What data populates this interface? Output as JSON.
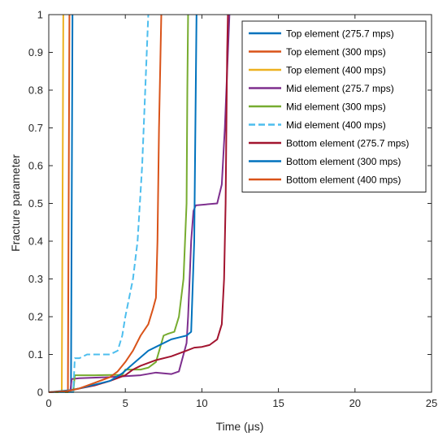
{
  "chart_data": {
    "type": "line",
    "title": "",
    "xlabel": "Time (μs)",
    "ylabel": "Fracture parameter",
    "xlim": [
      0,
      25
    ],
    "ylim": [
      0,
      1
    ],
    "xticks": [
      "0",
      "5",
      "10",
      "15",
      "20",
      "25"
    ],
    "yticks": [
      "0",
      "0.1",
      "0.2",
      "0.3",
      "0.4",
      "0.5",
      "0.6",
      "0.7",
      "0.8",
      "0.9",
      "1"
    ],
    "grid": false,
    "legend_position": "top-right",
    "series": [
      {
        "name": "Top element (275.7 mps)",
        "color": "#0072BD",
        "dash": "solid",
        "x": [
          0,
          1.45,
          1.5,
          1.55
        ],
        "y": [
          0,
          0,
          0.5,
          1
        ]
      },
      {
        "name": "Top element (300 mps)",
        "color": "#D95319",
        "dash": "solid",
        "x": [
          0,
          1.25,
          1.3,
          1.35
        ],
        "y": [
          0,
          0,
          0.5,
          1
        ]
      },
      {
        "name": "Top element (400 mps)",
        "color": "#EDB120",
        "dash": "solid",
        "x": [
          0,
          0.85,
          0.9,
          0.95
        ],
        "y": [
          0,
          0,
          0.5,
          1
        ]
      },
      {
        "name": "Mid element (275.7 mps)",
        "color": "#7E2F8E",
        "dash": "solid",
        "x": [
          0,
          1.4,
          1.5,
          2,
          4,
          6,
          7,
          7.5,
          8,
          8.5,
          9,
          9.1,
          9.2,
          9.3,
          9.45,
          9.6,
          11,
          11.3,
          11.5,
          11.7,
          11.8
        ],
        "y": [
          0,
          0,
          0.035,
          0.037,
          0.04,
          0.045,
          0.052,
          0.05,
          0.048,
          0.055,
          0.13,
          0.2,
          0.3,
          0.4,
          0.48,
          0.495,
          0.5,
          0.55,
          0.7,
          0.9,
          1
        ]
      },
      {
        "name": "Mid element (300 mps)",
        "color": "#77AC30",
        "dash": "solid",
        "x": [
          0,
          1.6,
          1.7,
          3,
          4.8,
          5,
          6,
          6.5,
          7,
          7.5,
          7.8,
          8.2,
          8.5,
          8.8,
          9,
          9.05,
          9.1
        ],
        "y": [
          0,
          0,
          0.045,
          0.045,
          0.046,
          0.06,
          0.06,
          0.065,
          0.08,
          0.15,
          0.155,
          0.16,
          0.2,
          0.3,
          0.5,
          0.8,
          1
        ]
      },
      {
        "name": "Mid element (400 mps)",
        "color": "#4DBEEE",
        "dash": "dashed",
        "x": [
          0,
          1.6,
          1.7,
          2,
          2.5,
          4,
          4.5,
          4.8,
          5,
          5.5,
          5.8,
          6.1,
          6.3,
          6.4,
          6.5
        ],
        "y": [
          0,
          0,
          0.09,
          0.09,
          0.1,
          0.1,
          0.11,
          0.15,
          0.2,
          0.3,
          0.4,
          0.6,
          0.8,
          0.9,
          1
        ]
      },
      {
        "name": "Bottom element (275.7 mps)",
        "color": "#A2142F",
        "dash": "solid",
        "x": [
          0,
          1.2,
          2,
          3,
          4,
          5,
          5.5,
          6,
          7,
          8,
          9,
          9.5,
          10,
          10.5,
          11,
          11.3,
          11.45,
          11.55,
          11.6,
          11.65,
          11.7
        ],
        "y": [
          0,
          0.003,
          0.01,
          0.018,
          0.03,
          0.045,
          0.06,
          0.07,
          0.085,
          0.095,
          0.11,
          0.118,
          0.12,
          0.125,
          0.14,
          0.18,
          0.3,
          0.5,
          0.7,
          0.9,
          1
        ]
      },
      {
        "name": "Bottom element (300 mps)",
        "color": "#0072BD",
        "dash": "solid",
        "x": [
          0,
          1.3,
          2,
          3,
          4,
          4.8,
          5.5,
          6.5,
          7,
          8,
          8.5,
          9,
          9.3,
          9.5,
          9.6,
          9.65
        ],
        "y": [
          0,
          0.005,
          0.01,
          0.02,
          0.03,
          0.05,
          0.075,
          0.11,
          0.12,
          0.14,
          0.145,
          0.15,
          0.16,
          0.4,
          0.8,
          1
        ]
      },
      {
        "name": "Bottom element (400 mps)",
        "color": "#D95319",
        "dash": "solid",
        "x": [
          0,
          1.2,
          2,
          3,
          4,
          4.5,
          5,
          5.5,
          6,
          6.5,
          6.8,
          7,
          7.1,
          7.2,
          7.3,
          7.35
        ],
        "y": [
          0,
          0.003,
          0.01,
          0.025,
          0.04,
          0.055,
          0.08,
          0.11,
          0.15,
          0.18,
          0.22,
          0.25,
          0.4,
          0.7,
          0.9,
          1
        ]
      }
    ]
  }
}
